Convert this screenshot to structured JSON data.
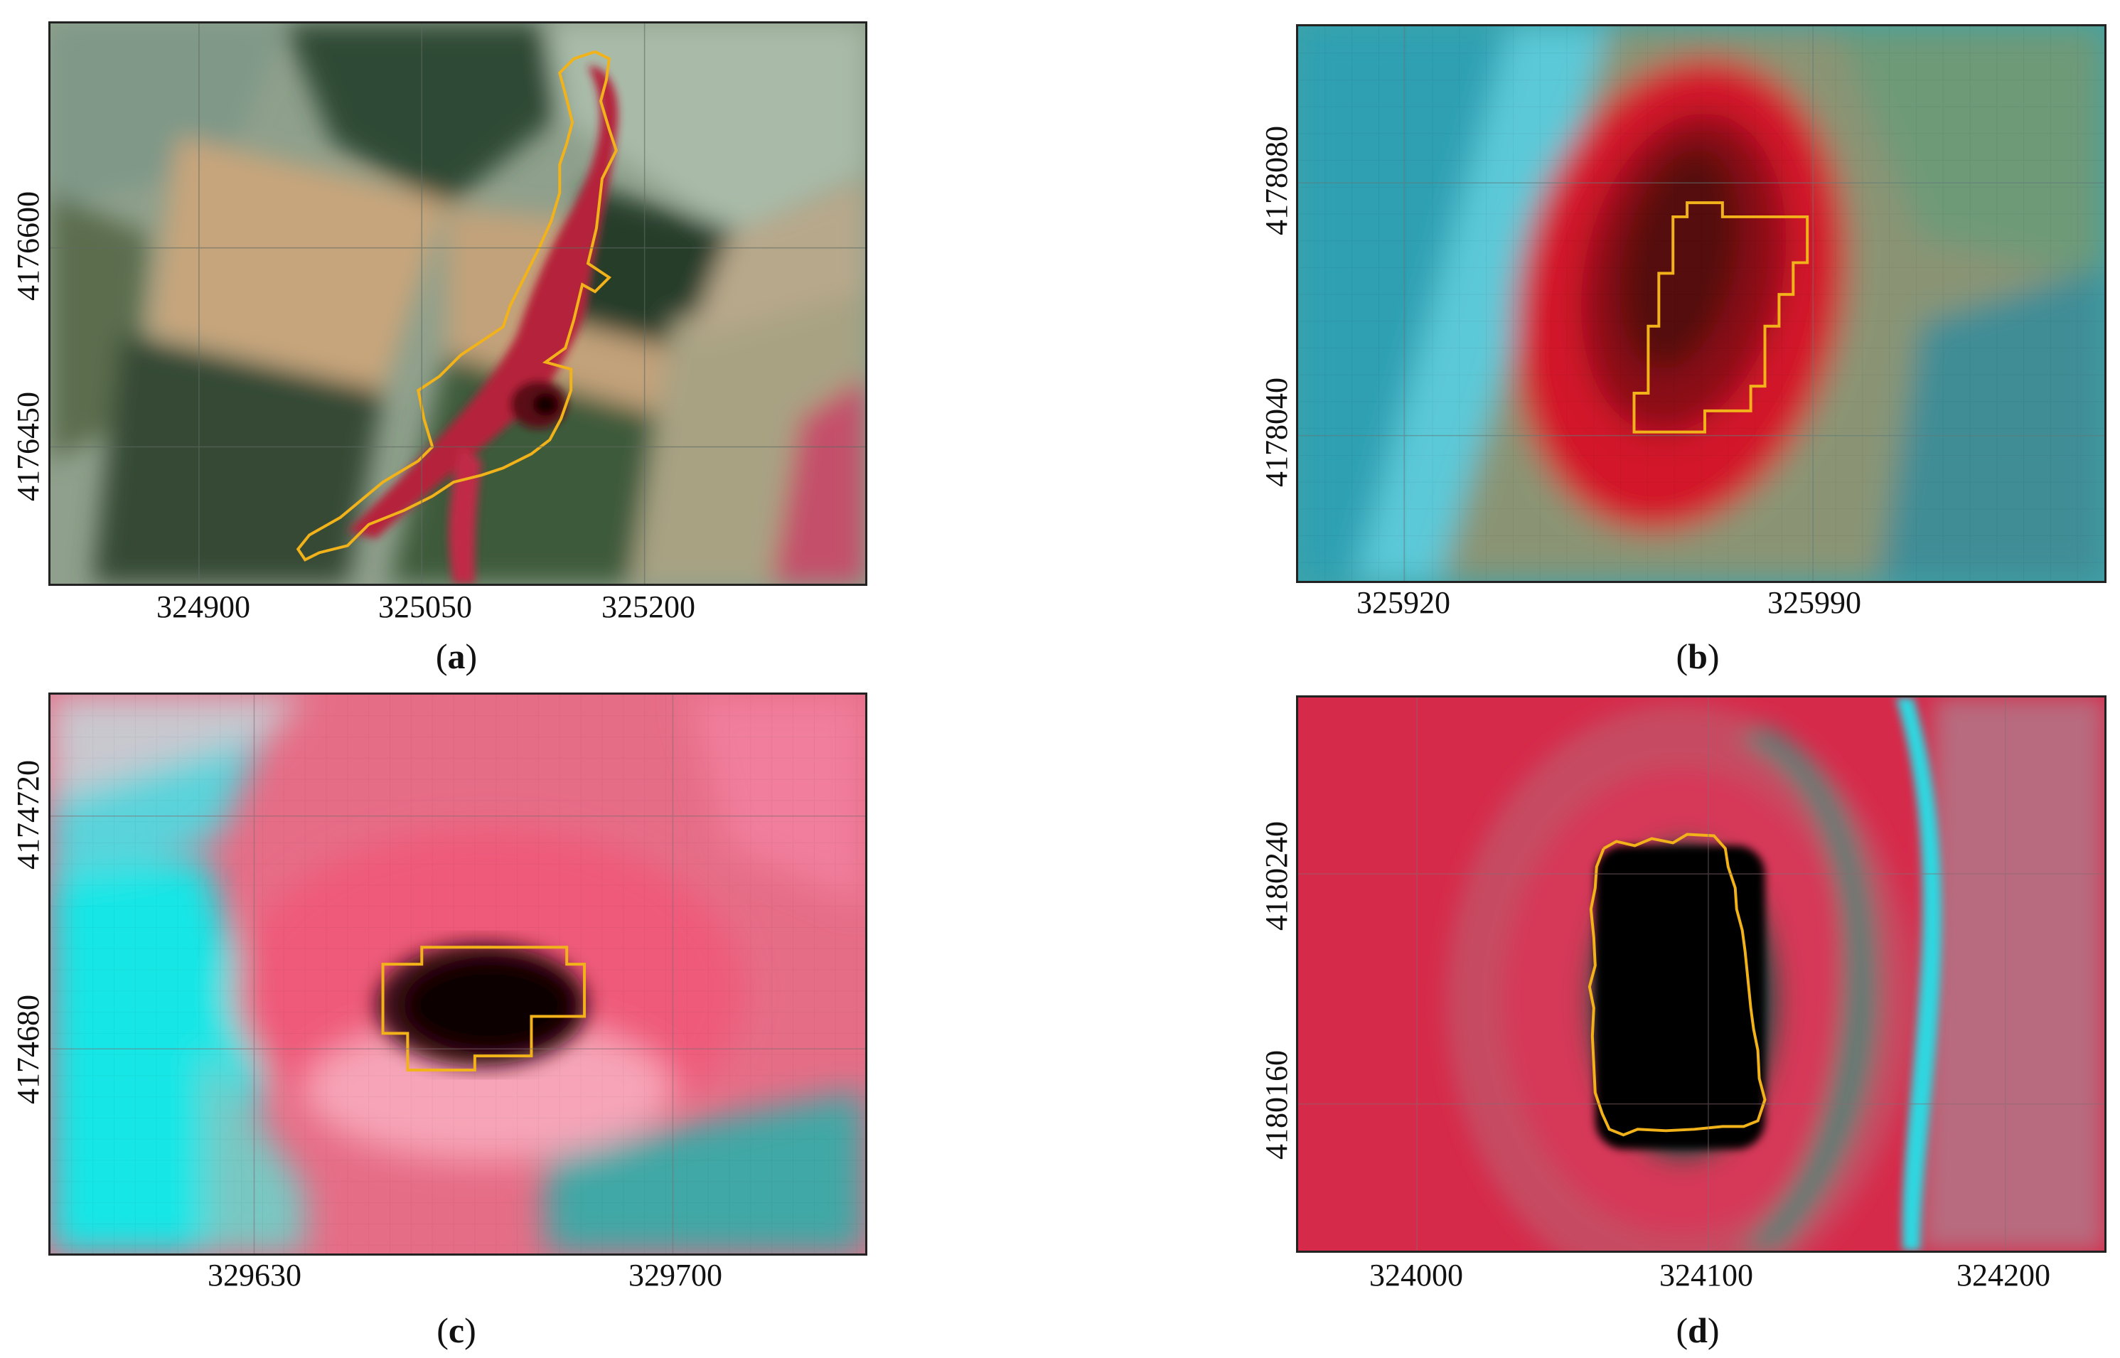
{
  "panels": [
    {
      "id": "a",
      "label_letter": "a",
      "x_ticks": [
        "324900",
        "325050",
        "325200"
      ],
      "y_ticks": [
        "4176600",
        "4176450"
      ],
      "outline_color": "#f2b21a",
      "scene": "agricultural-fields-with-linear-wetland"
    },
    {
      "id": "b",
      "label_letter": "b",
      "x_ticks": [
        "325920",
        "325990"
      ],
      "y_ticks": [
        "4178080",
        "4178040"
      ],
      "outline_color": "#f2b21a",
      "scene": "pixelated-red-vegetation-patch"
    },
    {
      "id": "c",
      "label_letter": "c",
      "x_ticks": [
        "329630",
        "329700"
      ],
      "y_ticks": [
        "4174720",
        "4174680"
      ],
      "outline_color": "#f2b21a",
      "scene": "pink-field-with-dark-pond"
    },
    {
      "id": "d",
      "label_letter": "d",
      "x_ticks": [
        "324000",
        "324100",
        "324200"
      ],
      "y_ticks": [
        "4180240",
        "4180160"
      ],
      "outline_color": "#f2b21a",
      "scene": "red-field-with-dark-pond-and-canal"
    }
  ],
  "colors": {
    "outline": "#f2b21a",
    "frame": "#222222",
    "vegetation_red": "#d6223a",
    "water_cyan": "#2ad4dc",
    "soil_tan": "#c9aa7c",
    "crop_dark_green": "#2d4632"
  }
}
